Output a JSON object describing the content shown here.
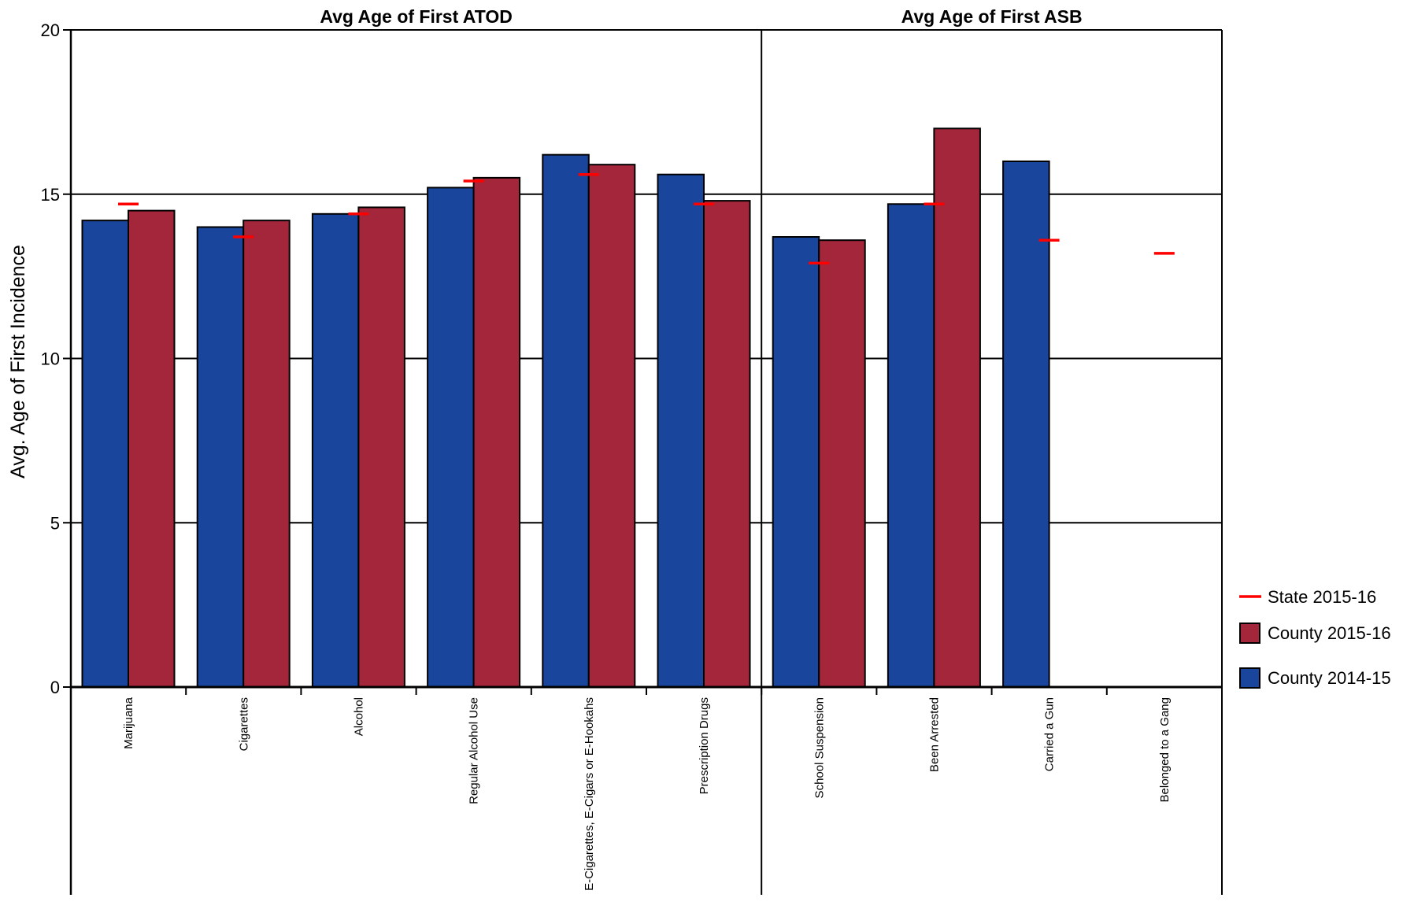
{
  "chart_data": {
    "type": "bar",
    "ylabel": "Avg. Age of First Incidence",
    "ylim": [
      0,
      20
    ],
    "yticks": [
      0,
      5,
      10,
      15,
      20
    ],
    "grid": true,
    "legend_position": "right",
    "panels": [
      {
        "title": "Avg Age of First ATOD",
        "categories": [
          "Marijuana",
          "Cigarettes",
          "Alcohol",
          "Regular Alcohol Use",
          "E-Cigarettes, E-Cigars or E-Hookahs",
          "Prescription Drugs"
        ],
        "series": [
          {
            "name": "County 2014-15",
            "values": [
              14.2,
              14.0,
              14.4,
              15.2,
              16.2,
              15.6
            ]
          },
          {
            "name": "County 2015-16",
            "values": [
              14.5,
              14.2,
              14.6,
              15.5,
              15.9,
              14.8
            ]
          },
          {
            "name": "State 2015-16",
            "values": [
              14.7,
              13.7,
              14.4,
              15.4,
              15.6,
              14.7
            ]
          }
        ]
      },
      {
        "title": "Avg Age of First ASB",
        "categories": [
          "School Suspension",
          "Been Arrested",
          "Carried a Gun",
          "Belonged to a Gang"
        ],
        "series": [
          {
            "name": "County 2014-15",
            "values": [
              13.7,
              14.7,
              16.0,
              null
            ]
          },
          {
            "name": "County 2015-16",
            "values": [
              13.6,
              17.0,
              null,
              null
            ]
          },
          {
            "name": "State 2015-16",
            "values": [
              12.9,
              14.7,
              13.6,
              13.2
            ]
          }
        ]
      }
    ],
    "legend": [
      {
        "name": "State 2015-16",
        "kind": "marker",
        "color": "#ff0000"
      },
      {
        "name": "County 2015-16",
        "kind": "box",
        "color": "#a3263a"
      },
      {
        "name": "County 2014-15",
        "kind": "box",
        "color": "#19469c"
      }
    ],
    "colors": {
      "County 2014-15": "#19469c",
      "County 2015-16": "#a3263a",
      "State 2015-16": "#ff0000"
    }
  }
}
